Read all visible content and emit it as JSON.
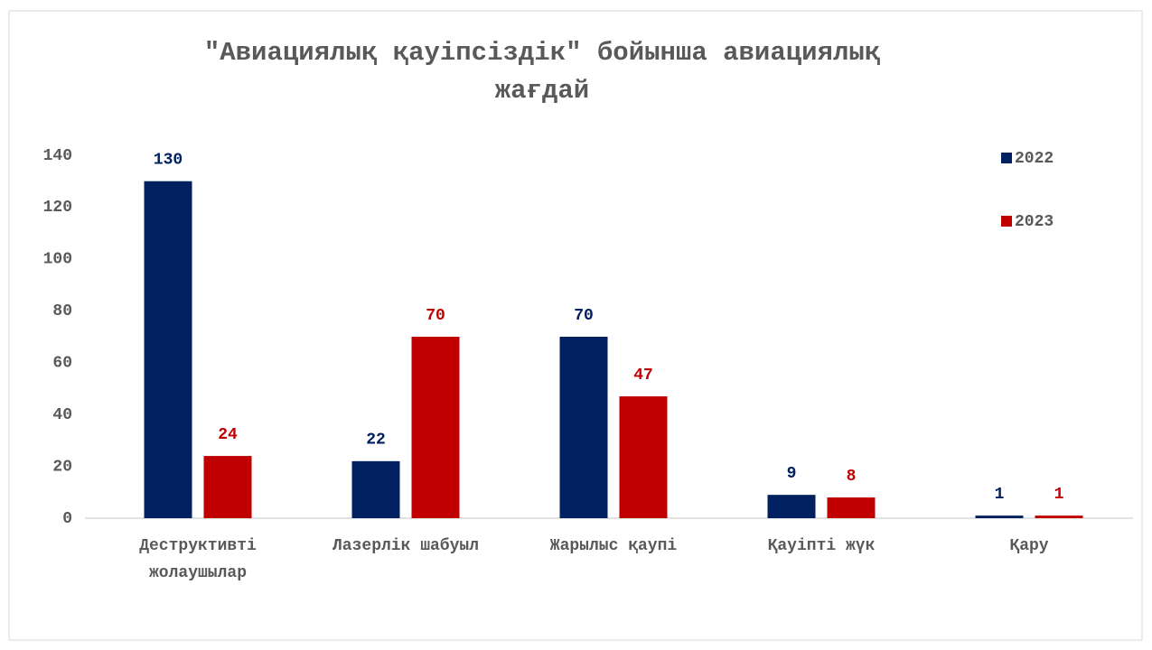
{
  "chart_data": {
    "type": "bar",
    "title": "\"Авиациялық қауіпсіздік\" бойынша авиациялық жағдай",
    "categories": [
      "Деструктивті жолаушылар",
      "Лазерлік шабуыл",
      "Жарылыс қаупі",
      "Қауіпті жүк",
      "Қару"
    ],
    "series": [
      {
        "name": "2022",
        "color": "#002060",
        "values": [
          130,
          22,
          70,
          9,
          1
        ]
      },
      {
        "name": "2023",
        "color": "#c00000",
        "values": [
          24,
          70,
          47,
          8,
          1
        ]
      }
    ],
    "ylim": [
      0,
      140
    ],
    "yticks": [
      0,
      20,
      40,
      60,
      80,
      100,
      120,
      140
    ],
    "grid": false,
    "legend": "top-right"
  }
}
